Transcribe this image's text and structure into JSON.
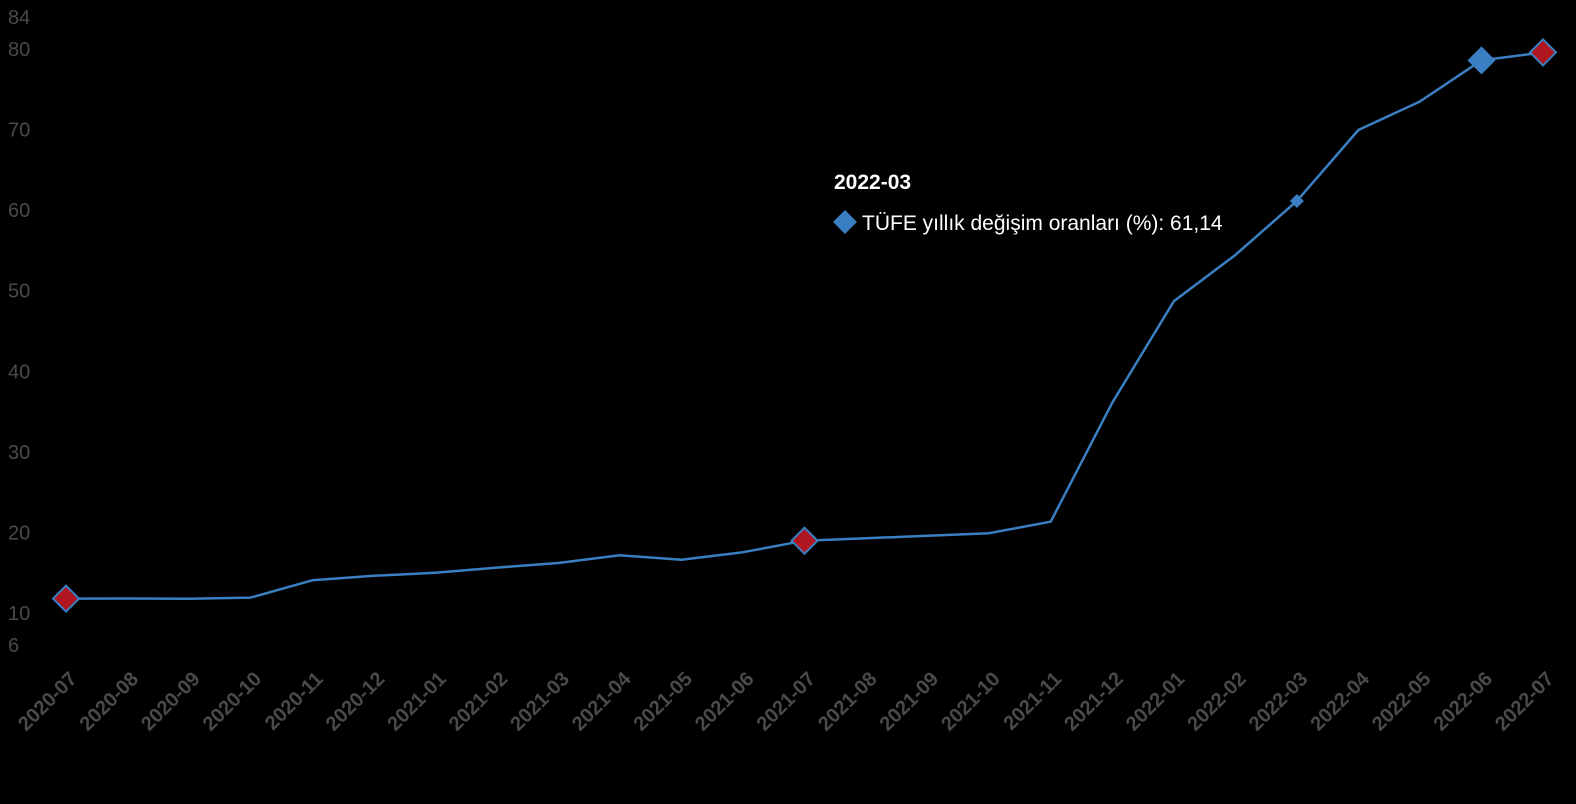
{
  "colors": {
    "background": "#000000",
    "line": "#3a7fc1",
    "highlight_marker": "#b0161f",
    "highlight_marker_border": "#3a7fc1",
    "tick_text": "#4a4a4a",
    "tooltip_text": "#ffffff"
  },
  "chart_data": {
    "type": "line",
    "title": "",
    "xlabel": "",
    "ylabel": "",
    "ylim": [
      6,
      84
    ],
    "y_ticks": [
      6,
      10,
      20,
      30,
      40,
      50,
      60,
      70,
      80,
      84
    ],
    "grid": false,
    "legend": "none",
    "categories": [
      "2020-07",
      "2020-08",
      "2020-09",
      "2020-10",
      "2020-11",
      "2020-12",
      "2021-01",
      "2021-02",
      "2021-03",
      "2021-04",
      "2021-05",
      "2021-06",
      "2021-07",
      "2021-08",
      "2021-09",
      "2021-10",
      "2021-11",
      "2021-12",
      "2022-01",
      "2022-02",
      "2022-03",
      "2022-04",
      "2022-05",
      "2022-06",
      "2022-07"
    ],
    "series": [
      {
        "name": "TÜFE yıllık değişim oranları (%)",
        "values": [
          11.76,
          11.77,
          11.75,
          11.89,
          14.03,
          14.6,
          14.97,
          15.61,
          16.19,
          17.14,
          16.59,
          17.53,
          18.95,
          19.25,
          19.58,
          19.89,
          21.31,
          36.08,
          48.69,
          54.44,
          61.14,
          69.97,
          73.5,
          78.62,
          79.6
        ]
      }
    ],
    "highlighted": [
      "2020-07",
      "2021-07",
      "2022-07"
    ],
    "hovered": "2022-03",
    "tooltip": {
      "title": "2022-03",
      "label": "TÜFE yıllık değişim oranları (%): 61,14"
    }
  }
}
